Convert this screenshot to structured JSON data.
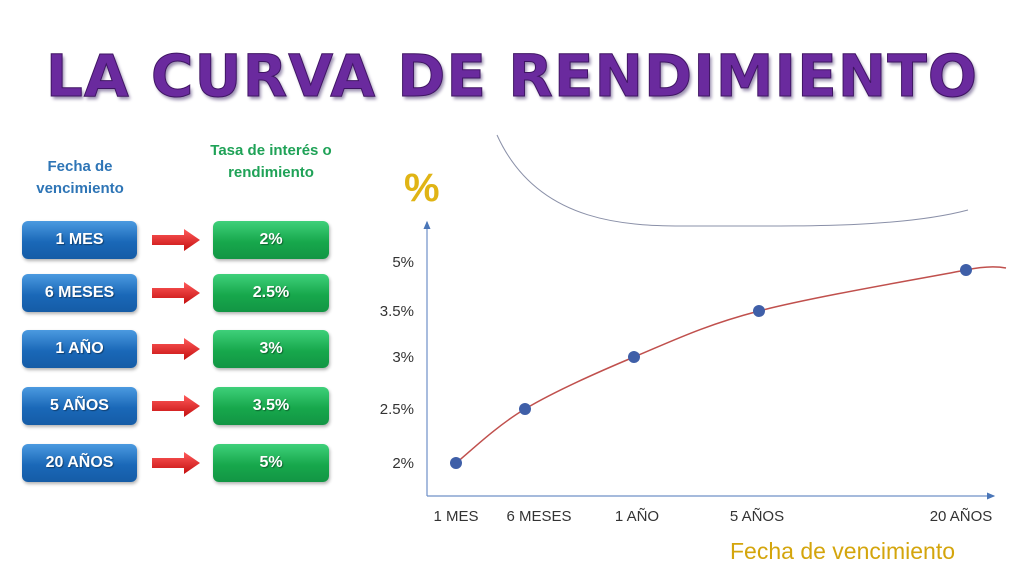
{
  "title": "LA CURVA DE RENDIMIENTO",
  "table": {
    "left_header": "Fecha de vencimiento",
    "right_header": "Tasa de interés o rendimiento",
    "rows": [
      {
        "maturity": "1 MES",
        "rate": "2%"
      },
      {
        "maturity": "6 MESES",
        "rate": "2.5%"
      },
      {
        "maturity": "1 AÑO",
        "rate": "3%"
      },
      {
        "maturity": "5 AÑOS",
        "rate": "3.5%"
      },
      {
        "maturity": "20 AÑOS",
        "rate": "5%"
      }
    ]
  },
  "colors": {
    "title": "#6a2a9e",
    "blue_box": "#1a68b8",
    "green_box": "#17a84c",
    "arrow": "#e02020",
    "curve": "#c0504d",
    "points": "#3f5fa8",
    "axis_label": "#d4a50c"
  },
  "chart_data": {
    "type": "line",
    "title": "",
    "ylabel": "%",
    "xlabel": "Fecha de vencimiento",
    "categories": [
      "1 MES",
      "6 MESES",
      "1 AÑO",
      "5 AÑOS",
      "20 AÑOS"
    ],
    "values": [
      2,
      2.5,
      3,
      3.5,
      5
    ],
    "yticks": [
      "2%",
      "2.5%",
      "3%",
      "3.5%",
      "5%"
    ],
    "ytick_values": [
      2,
      2.5,
      3,
      3.5,
      5
    ],
    "grid": false,
    "legend": "none"
  }
}
